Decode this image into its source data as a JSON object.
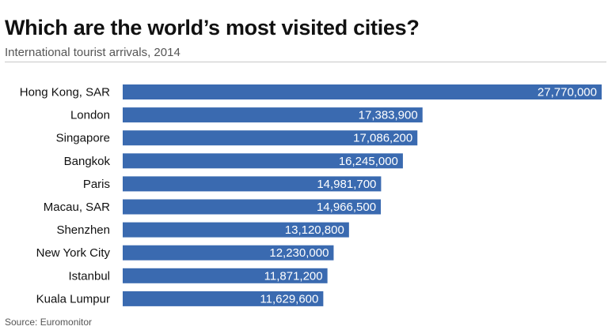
{
  "chart_data": {
    "type": "bar",
    "orientation": "horizontal",
    "title": "Which are the world’s most visited cities?",
    "subtitle": "International tourist arrivals, 2014",
    "source": "Source: Euromonitor",
    "categories": [
      "Hong Kong, SAR",
      "London",
      "Singapore",
      "Bangkok",
      "Paris",
      "Macau, SAR",
      "Shenzhen",
      "New York City",
      "Istanbul",
      "Kuala Lumpur"
    ],
    "values": [
      27770000,
      17383900,
      17086200,
      16245000,
      14981700,
      14966500,
      13120800,
      12230000,
      11871200,
      11629600
    ],
    "value_labels": [
      "27,770,000",
      "17,383,900",
      "17,086,200",
      "16,245,000",
      "14,981,700",
      "14,966,500",
      "13,120,800",
      "12,230,000",
      "11,871,200",
      "11,629,600"
    ],
    "xlim": [
      0,
      27770000
    ],
    "grid": false,
    "legend": "none",
    "bar_color": "#3a6ab0",
    "label_color": "#ffffff"
  }
}
